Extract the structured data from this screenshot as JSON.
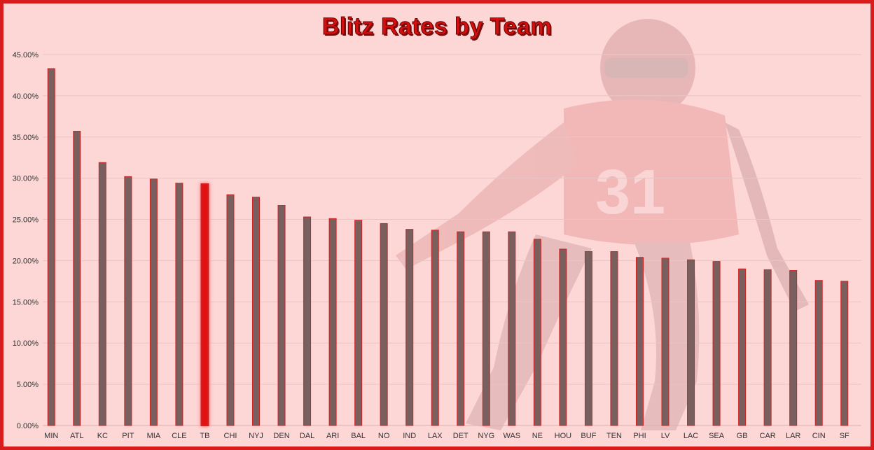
{
  "chart_data": {
    "type": "bar",
    "title": "Blitz Rates by Team",
    "xlabel": "",
    "ylabel": "",
    "ylim": [
      0,
      45
    ],
    "y_ticks": [
      "0.00%",
      "5.00%",
      "10.00%",
      "15.00%",
      "20.00%",
      "25.00%",
      "30.00%",
      "35.00%",
      "40.00%",
      "45.00%"
    ],
    "categories": [
      "MIN",
      "ATL",
      "KC",
      "PIT",
      "MIA",
      "CLE",
      "TB",
      "CHI",
      "NYJ",
      "DEN",
      "DAL",
      "ARI",
      "BAL",
      "NO",
      "IND",
      "LAX",
      "DET",
      "NYG",
      "WAS",
      "NE",
      "HOU",
      "BUF",
      "TEN",
      "PHI",
      "LV",
      "LAC",
      "SEA",
      "GB",
      "CAR",
      "LAR",
      "CIN",
      "SF"
    ],
    "values": [
      43.3,
      35.7,
      31.9,
      30.2,
      29.9,
      29.4,
      29.3,
      28.0,
      27.7,
      26.7,
      25.3,
      25.1,
      24.9,
      24.5,
      23.8,
      23.7,
      23.5,
      23.5,
      23.5,
      22.6,
      21.4,
      21.1,
      21.1,
      20.4,
      20.3,
      20.1,
      19.9,
      19.0,
      18.9,
      18.8,
      17.6,
      17.5
    ],
    "highlight": "TB",
    "grid": true,
    "legend": "none",
    "colors": {
      "bar": "#7a5f5f",
      "bar_border": "#d32020",
      "highlight": "#e01212",
      "background": "#fdd6d6",
      "frame": "#d81b1b",
      "title": "#d40f0f",
      "grid": "#e9c5c5"
    }
  }
}
